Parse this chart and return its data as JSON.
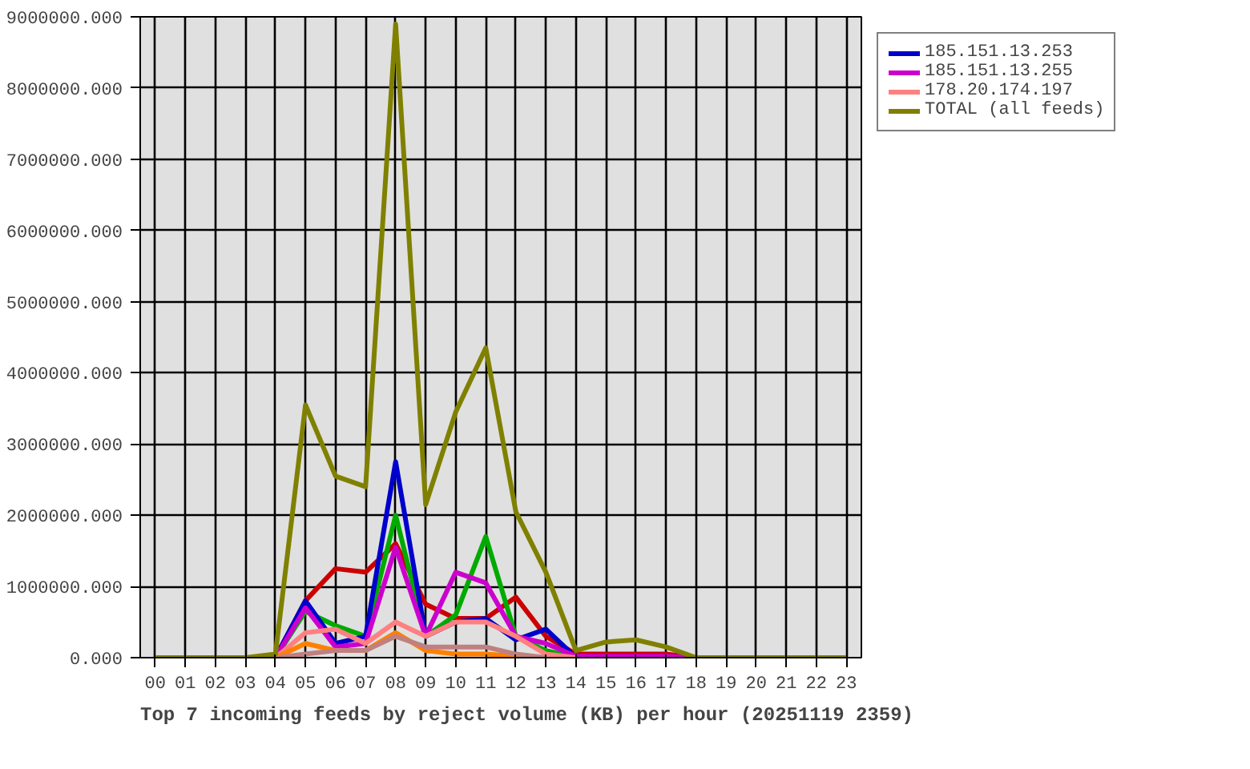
{
  "chart_data": {
    "type": "line",
    "title": "Top 7 incoming feeds by reject volume (KB) per hour (20251119 2359)",
    "categories": [
      "00",
      "01",
      "02",
      "03",
      "04",
      "05",
      "06",
      "07",
      "08",
      "09",
      "10",
      "11",
      "12",
      "13",
      "14",
      "15",
      "16",
      "17",
      "18",
      "19",
      "20",
      "21",
      "22",
      "23"
    ],
    "series": [
      {
        "color": "#cc0000",
        "values": [
          null,
          null,
          null,
          null,
          0,
          800000,
          1250000,
          1200000,
          1600000,
          750000,
          550000,
          550000,
          850000,
          300000,
          50000,
          50000,
          50000,
          50000,
          0,
          null,
          null,
          null,
          null,
          null
        ]
      },
      {
        "color": "#00aa00",
        "values": [
          null,
          null,
          null,
          null,
          0,
          650000,
          450000,
          300000,
          2000000,
          300000,
          600000,
          1700000,
          300000,
          100000,
          0,
          null,
          null,
          null,
          null,
          null,
          null,
          null,
          null,
          null
        ]
      },
      {
        "name": "185.151.13.253",
        "color": "#0000cc",
        "values": [
          null,
          null,
          null,
          null,
          0,
          800000,
          200000,
          300000,
          2750000,
          300000,
          500000,
          550000,
          250000,
          400000,
          0,
          null,
          null,
          null,
          null,
          null,
          null,
          null,
          null,
          null
        ]
      },
      {
        "name": "185.151.13.255",
        "color": "#cc00cc",
        "values": [
          null,
          null,
          null,
          null,
          0,
          700000,
          150000,
          200000,
          1550000,
          300000,
          1200000,
          1050000,
          300000,
          200000,
          20000,
          20000,
          20000,
          20000,
          0,
          null,
          null,
          null,
          null,
          null
        ]
      },
      {
        "name": "178.20.174.197",
        "color": "#ff8080",
        "values": [
          null,
          null,
          null,
          null,
          0,
          350000,
          400000,
          200000,
          500000,
          300000,
          500000,
          500000,
          300000,
          50000,
          0,
          null,
          null,
          null,
          null,
          null,
          null,
          null,
          null,
          null
        ]
      },
      {
        "color": "#ff8000",
        "values": [
          null,
          null,
          null,
          null,
          0,
          200000,
          100000,
          100000,
          350000,
          100000,
          50000,
          50000,
          20000,
          0,
          null,
          null,
          null,
          null,
          null,
          null,
          null,
          null,
          null,
          null
        ]
      },
      {
        "color": "#c08080",
        "values": [
          null,
          null,
          null,
          null,
          0,
          50000,
          100000,
          100000,
          300000,
          150000,
          150000,
          150000,
          50000,
          0,
          null,
          null,
          null,
          null,
          null,
          null,
          null,
          null,
          null,
          null
        ]
      },
      {
        "name": "TOTAL (all feeds)",
        "color": "#808000",
        "values": [
          0,
          0,
          0,
          0,
          50000,
          3550000,
          2550000,
          2400000,
          8900000,
          2150000,
          3450000,
          4350000,
          2050000,
          1200000,
          100000,
          220000,
          250000,
          150000,
          0,
          0,
          0,
          0,
          0,
          0
        ]
      }
    ],
    "ylim": [
      0,
      9000000
    ],
    "yticks": [
      {
        "value": 0,
        "label": "0.000"
      },
      {
        "value": 1000000,
        "label": "1000000.000"
      },
      {
        "value": 2000000,
        "label": "2000000.000"
      },
      {
        "value": 3000000,
        "label": "3000000.000"
      },
      {
        "value": 4000000,
        "label": "4000000.000"
      },
      {
        "value": 5000000,
        "label": "5000000.000"
      },
      {
        "value": 6000000,
        "label": "6000000.000"
      },
      {
        "value": 7000000,
        "label": "7000000.000"
      },
      {
        "value": 8000000,
        "label": "8000000.000"
      },
      {
        "value": 9000000,
        "label": "9000000.000"
      }
    ],
    "grid": true,
    "legend": "top right",
    "line_style": "solid"
  }
}
